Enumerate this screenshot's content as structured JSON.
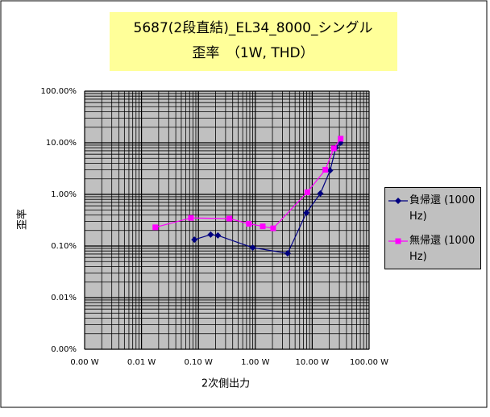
{
  "chart_data": {
    "type": "line",
    "title": "5687(2段直結)_EL34_8000_シングル",
    "subtitle": "歪率　（1W, THD）",
    "xlabel": "2次側出力",
    "ylabel": "歪率",
    "xscale": "log",
    "yscale": "log",
    "grid": true,
    "xlim": [
      0.001,
      100
    ],
    "ylim": [
      0.001,
      100
    ],
    "xticks": [
      {
        "value": 0.001,
        "label": "0.00 W"
      },
      {
        "value": 0.01,
        "label": "0.01 W"
      },
      {
        "value": 0.1,
        "label": "0.10 W"
      },
      {
        "value": 1,
        "label": "1.00 W"
      },
      {
        "value": 10,
        "label": "10.00 W"
      },
      {
        "value": 100,
        "label": "100.00 W"
      }
    ],
    "yticks": [
      {
        "value": 0.001,
        "label": "0.00%"
      },
      {
        "value": 0.01,
        "label": "0.01%"
      },
      {
        "value": 0.1,
        "label": "0.10%"
      },
      {
        "value": 1,
        "label": "1.00%"
      },
      {
        "value": 10,
        "label": "10.00%"
      },
      {
        "value": 100,
        "label": "100.00%"
      }
    ],
    "legend": "right",
    "series": [
      {
        "name": "負帰還 (1000 Hz)",
        "color": "#000080",
        "marker": "diamond",
        "x": [
          0.085,
          0.164,
          0.22,
          0.9,
          3.7,
          7.9,
          13.9,
          20.6,
          26,
          31.6
        ],
        "values": [
          0.133,
          0.166,
          0.16,
          0.093,
          0.072,
          0.44,
          1.04,
          2.9,
          8.0,
          10
        ]
      },
      {
        "name": "無帰還 (1000 Hz)",
        "color": "#ff00ff",
        "marker": "square",
        "x": [
          0.0175,
          0.074,
          0.35,
          0.77,
          1.35,
          2.06,
          8.2,
          17,
          24,
          31.6
        ],
        "values": [
          0.23,
          0.35,
          0.34,
          0.27,
          0.24,
          0.22,
          1.1,
          3.0,
          7.8,
          12
        ]
      }
    ]
  }
}
